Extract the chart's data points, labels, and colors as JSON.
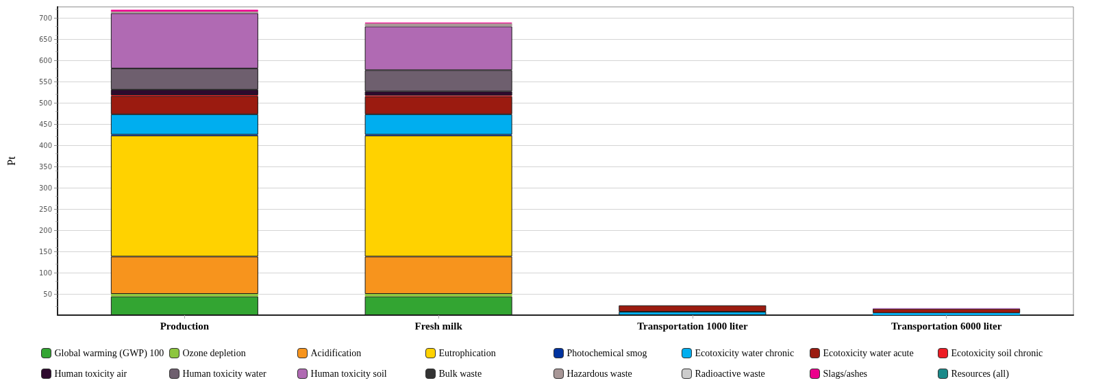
{
  "chart_data": {
    "type": "bar",
    "stacked": true,
    "ylabel": "Pt",
    "categories": [
      "Production",
      "Fresh milk",
      "Transportation 1000 liter",
      "Transportation 6000 liter"
    ],
    "ylim": [
      0,
      726
    ],
    "yticks": [
      50,
      100,
      150,
      200,
      250,
      300,
      350,
      400,
      450,
      500,
      550,
      600,
      650,
      700
    ],
    "grid": "y",
    "legend": "bottom",
    "series": [
      {
        "name": "Global warming (GWP) 100",
        "color": "#33a532",
        "values": [
          44,
          44,
          null,
          null
        ]
      },
      {
        "name": "Ozone depletion",
        "color": "#8dc63f",
        "values": [
          6,
          6,
          0,
          0
        ]
      },
      {
        "name": "Acidification",
        "color": "#f7941d",
        "values": [
          88,
          88,
          0,
          0
        ]
      },
      {
        "name": "Eutrophication",
        "color": "#ffd200",
        "values": [
          285,
          285,
          0,
          0
        ]
      },
      {
        "name": "Photochemical smog",
        "color": "#0033a0",
        "values": [
          2,
          2,
          0,
          0
        ]
      },
      {
        "name": "Ecotoxicity water chronic",
        "color": "#00aeef",
        "values": [
          48,
          48,
          8,
          5
        ]
      },
      {
        "name": "Ecotoxicity water acute",
        "color": "#9b1b10",
        "values": [
          43,
          42,
          15,
          10
        ]
      },
      {
        "name": "Ecotoxicity soil chronic",
        "color": "#ed1c24",
        "values": [
          2,
          2,
          0,
          0
        ]
      },
      {
        "name": "Human toxicity air",
        "color": "#2e0a2e",
        "values": [
          13,
          10,
          0,
          0
        ]
      },
      {
        "name": "Human toxicity water",
        "color": "#6e5f6e",
        "values": [
          50,
          50,
          0,
          0
        ]
      },
      {
        "name": "Human toxicity soil",
        "color": "#b06ab3",
        "values": [
          130,
          103,
          0,
          1
        ]
      },
      {
        "name": "Bulk waste",
        "color": "#333333",
        "values": [
          0,
          0,
          0,
          0
        ]
      },
      {
        "name": "Hazardous waste",
        "color": "#a89797",
        "values": [
          4,
          7,
          0,
          0
        ]
      },
      {
        "name": "Radioactive waste",
        "color": "#cccccc",
        "values": [
          0,
          0,
          0,
          0
        ]
      },
      {
        "name": "Slags/ashes",
        "color": "#ec008c",
        "values": [
          4,
          2,
          0,
          0
        ]
      },
      {
        "name": "Resources (all)",
        "color": "#1a8a8a",
        "values": [
          0,
          0,
          0,
          0
        ]
      }
    ]
  }
}
